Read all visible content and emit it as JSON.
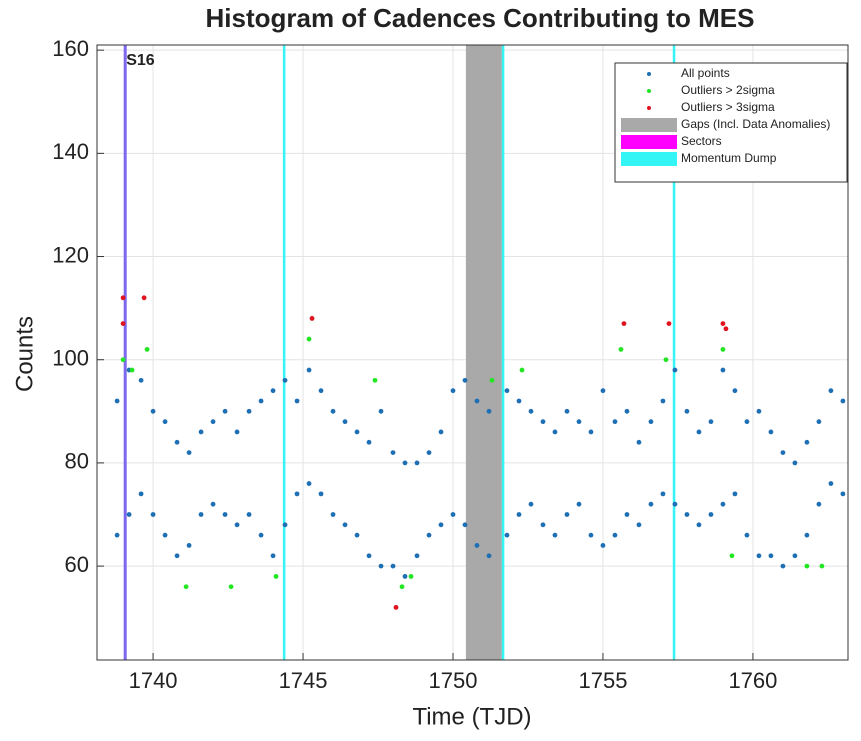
{
  "chart_data": {
    "type": "scatter",
    "title": "Histogram of Cadences Contributing to MES",
    "xlabel": "Time (TJD)",
    "ylabel": "Counts",
    "xlim": [
      1738.13,
      1763.17
    ],
    "ylim": [
      41.8,
      161
    ],
    "xticks": [
      1740,
      1745,
      1750,
      1755,
      1760
    ],
    "yticks": [
      60,
      80,
      100,
      120,
      140,
      160
    ],
    "grid": true,
    "legend_position": "upper right",
    "series": [
      {
        "name": "All points",
        "color": "#1f6fb4",
        "x": [
          1738.8,
          1739.2,
          1739.6,
          1740.0,
          1740.4,
          1740.8,
          1741.2,
          1741.6,
          1742.0,
          1742.4,
          1742.8,
          1743.2,
          1743.6,
          1744.0,
          1744.4,
          1744.8,
          1745.2,
          1745.6,
          1746.0,
          1746.4,
          1746.8,
          1747.2,
          1747.6,
          1748.0,
          1748.4,
          1748.8,
          1749.2,
          1749.6,
          1750.0,
          1750.4,
          1750.8,
          1751.2,
          1751.8,
          1752.2,
          1752.6,
          1753.0,
          1753.4,
          1753.8,
          1754.2,
          1754.6,
          1755.0,
          1755.4,
          1755.8,
          1756.2,
          1756.6,
          1757.0,
          1757.4,
          1757.8,
          1758.2,
          1758.6,
          1759.0,
          1759.4,
          1759.8,
          1760.2,
          1760.6,
          1761.0,
          1761.4,
          1761.8,
          1762.2,
          1762.6,
          1763.0,
          1738.8,
          1739.2,
          1739.6,
          1740.0,
          1740.4,
          1740.8,
          1741.2,
          1741.6,
          1742.0,
          1742.4,
          1742.8,
          1743.2,
          1743.6,
          1744.0,
          1744.4,
          1744.8,
          1745.2,
          1745.6,
          1746.0,
          1746.4,
          1746.8,
          1747.2,
          1747.6,
          1748.0,
          1748.4,
          1748.8,
          1749.2,
          1749.6,
          1750.0,
          1750.4,
          1750.8,
          1751.2,
          1751.8,
          1752.2,
          1752.6,
          1753.0,
          1753.4,
          1753.8,
          1754.2,
          1754.6,
          1755.0,
          1755.4,
          1755.8,
          1756.2,
          1756.6,
          1757.0,
          1757.4,
          1757.8,
          1758.2,
          1758.6,
          1759.0,
          1759.4,
          1759.8,
          1760.2,
          1760.6,
          1761.0,
          1761.4,
          1761.8,
          1762.2,
          1762.6,
          1763.0
        ],
        "values": [
          92,
          98,
          96,
          90,
          88,
          84,
          82,
          86,
          88,
          90,
          86,
          90,
          92,
          94,
          96,
          92,
          98,
          94,
          90,
          88,
          86,
          84,
          90,
          82,
          80,
          80,
          82,
          86,
          94,
          96,
          92,
          90,
          94,
          92,
          90,
          88,
          86,
          90,
          88,
          86,
          94,
          88,
          90,
          84,
          88,
          92,
          98,
          90,
          86,
          88,
          98,
          94,
          88,
          90,
          86,
          82,
          80,
          84,
          88,
          94,
          92,
          66,
          70,
          74,
          70,
          66,
          62,
          64,
          70,
          72,
          70,
          68,
          70,
          66,
          62,
          68,
          74,
          76,
          74,
          70,
          68,
          66,
          62,
          60,
          60,
          58,
          62,
          66,
          68,
          70,
          68,
          64,
          62,
          66,
          70,
          72,
          68,
          66,
          70,
          72,
          66,
          64,
          66,
          70,
          68,
          72,
          74,
          72,
          70,
          68,
          70,
          72,
          74,
          66,
          62,
          62,
          60,
          62,
          66,
          72,
          76,
          74
        ]
      },
      {
        "name": "Outliers > 2sigma",
        "color": "#22e622",
        "x": [
          1739.0,
          1739.3,
          1739.8,
          1741.1,
          1742.6,
          1744.1,
          1745.2,
          1747.4,
          1748.3,
          1748.6,
          1751.3,
          1752.3,
          1755.6,
          1757.1,
          1759.0,
          1759.3,
          1761.8,
          1762.3
        ],
        "values": [
          100,
          98,
          102,
          56,
          56,
          58,
          104,
          96,
          56,
          58,
          96,
          98,
          102,
          100,
          102,
          62,
          60,
          60
        ]
      },
      {
        "name": "Outliers > 3sigma",
        "color": "#e0141e",
        "x": [
          1739.0,
          1739.0,
          1739.7,
          1745.3,
          1748.1,
          1755.7,
          1757.2,
          1759.0,
          1759.1
        ],
        "values": [
          112,
          107,
          112,
          108,
          52,
          107,
          107,
          107,
          106
        ]
      }
    ],
    "gaps": {
      "name": "Gaps (Incl. Data Anomalies)",
      "color": "#a9a9a9",
      "ranges": [
        [
          1750.43,
          1751.63
        ]
      ]
    },
    "sectors": {
      "name": "Sectors",
      "color": "#ff00ff",
      "line_color": "#7b68ee",
      "x": [
        1739.07
      ],
      "labels": [
        "S16"
      ]
    },
    "momentum_dumps": {
      "name": "Momentum Dump",
      "color": "#33f5f5",
      "x": [
        1744.37,
        1751.67,
        1757.37
      ]
    }
  }
}
